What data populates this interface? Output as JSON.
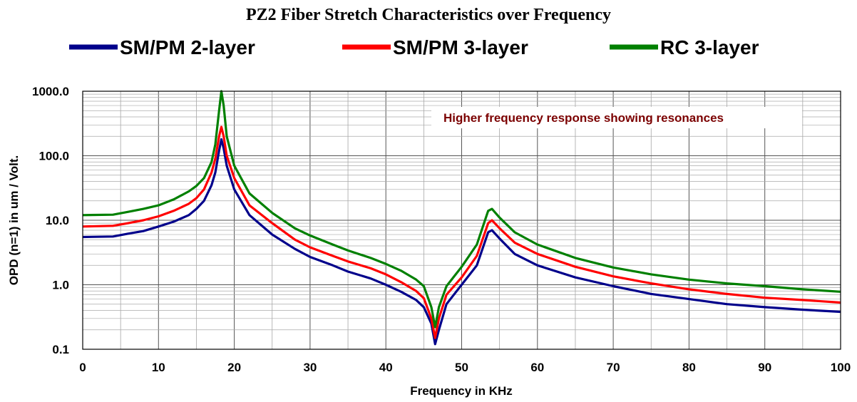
{
  "chart_data": {
    "type": "line",
    "title": "PZ2 Fiber Stretch Characteristics over Frequency",
    "xlabel": "Frequency in KHz",
    "ylabel": "OPD (n=1) in um / Volt.",
    "xlim": [
      0,
      100
    ],
    "ylim": [
      0.1,
      1000
    ],
    "yscale": "log",
    "grid": true,
    "legend_position": "top",
    "annotation": "Higher frequency response showing resonances",
    "x_ticks": [
      "0",
      "10",
      "20",
      "30",
      "40",
      "50",
      "60",
      "70",
      "80",
      "90",
      "100"
    ],
    "y_ticks": [
      "0.1",
      "1.0",
      "10.0",
      "100.0",
      "1000.0"
    ],
    "x_tick_values": [
      0,
      10,
      20,
      30,
      40,
      50,
      60,
      70,
      80,
      90,
      100
    ],
    "y_tick_values": [
      0.1,
      1,
      10,
      100,
      1000
    ],
    "x": [
      0,
      4,
      6,
      8,
      10,
      12,
      14,
      15,
      16,
      17,
      17.5,
      18,
      18.3,
      18.6,
      19,
      20,
      22,
      25,
      28,
      30,
      33,
      35,
      38,
      40,
      42,
      44,
      45,
      46,
      46.5,
      47,
      48,
      50,
      52,
      53.5,
      54,
      55,
      57,
      60,
      65,
      70,
      75,
      80,
      85,
      90,
      95,
      100
    ],
    "series": [
      {
        "name": "SM/PM 2-layer",
        "color": "#00008b",
        "values": [
          5.5,
          5.6,
          6.2,
          6.8,
          8,
          9.5,
          12,
          15,
          20,
          35,
          55,
          120,
          180,
          130,
          70,
          30,
          12,
          6,
          3.6,
          2.7,
          2,
          1.6,
          1.25,
          1.0,
          0.78,
          0.58,
          0.45,
          0.25,
          0.12,
          0.2,
          0.5,
          1.0,
          2.0,
          6.5,
          7,
          5.2,
          3.0,
          2.0,
          1.3,
          0.95,
          0.72,
          0.6,
          0.5,
          0.45,
          0.41,
          0.38
        ]
      },
      {
        "name": "SM/PM 3-layer",
        "color": "#ff0000",
        "values": [
          8,
          8.2,
          9,
          10,
          11.5,
          14,
          18,
          22,
          30,
          55,
          90,
          200,
          280,
          200,
          100,
          45,
          17,
          9,
          5,
          3.8,
          2.8,
          2.3,
          1.8,
          1.45,
          1.1,
          0.8,
          0.62,
          0.3,
          0.15,
          0.3,
          0.7,
          1.3,
          2.8,
          9,
          10,
          7.5,
          4.5,
          3.0,
          1.9,
          1.35,
          1.05,
          0.85,
          0.72,
          0.63,
          0.58,
          0.53
        ]
      },
      {
        "name": "RC 3-layer",
        "color": "#008000",
        "values": [
          12,
          12.2,
          13.5,
          15,
          17,
          21,
          28,
          34,
          45,
          80,
          150,
          500,
          1000,
          600,
          200,
          70,
          26,
          13,
          7.5,
          5.8,
          4.2,
          3.4,
          2.6,
          2.1,
          1.65,
          1.2,
          0.95,
          0.45,
          0.22,
          0.45,
          0.95,
          1.9,
          4.2,
          14,
          15,
          11,
          6.5,
          4.2,
          2.6,
          1.85,
          1.45,
          1.2,
          1.05,
          0.95,
          0.85,
          0.78
        ]
      }
    ]
  }
}
